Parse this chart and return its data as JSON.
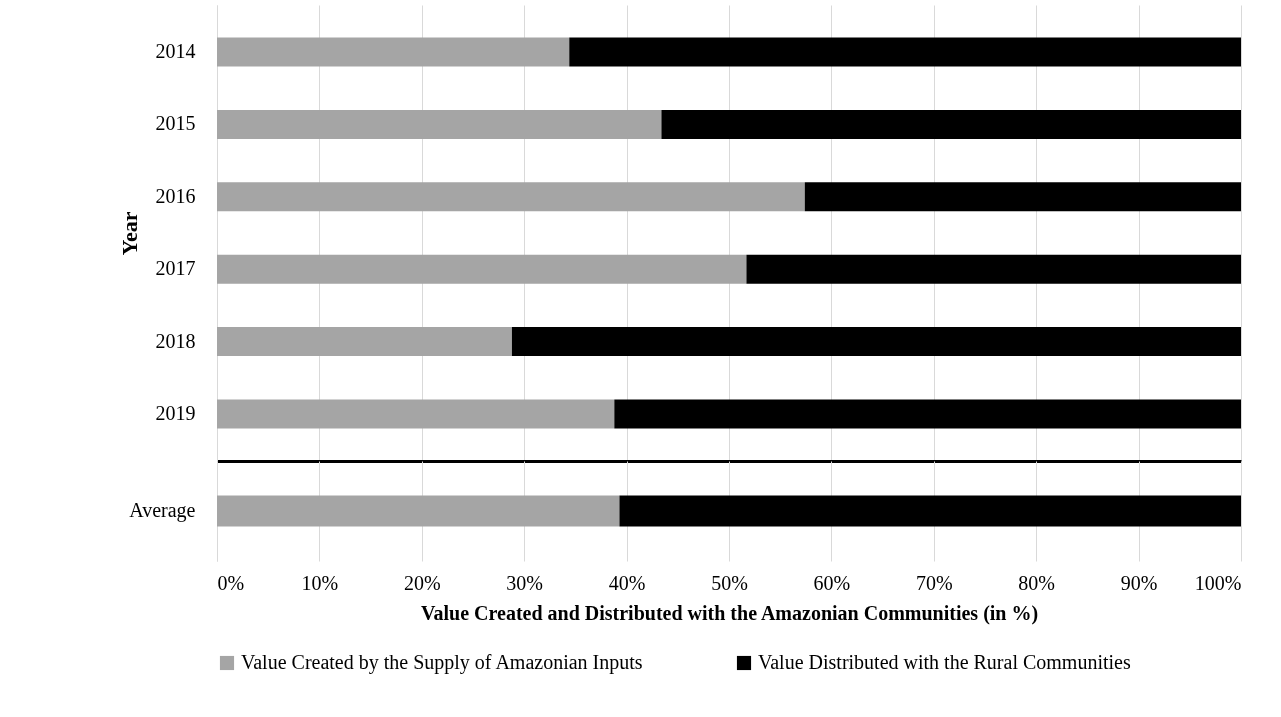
{
  "chart_data": [
    {
      "type": "bar",
      "orientation": "horizontal",
      "stacked": true,
      "ylabel": "Year",
      "categories": [
        "2014",
        "2015",
        "2016",
        "2017",
        "2018",
        "2019"
      ],
      "series": [
        {
          "color": "#a5a5a5",
          "values": [
            34.4,
            43.4,
            57.4,
            51.7,
            28.8,
            38.8
          ]
        },
        {
          "color": "#000000",
          "values": [
            65.6,
            56.6,
            42.6,
            48.3,
            71.2,
            61.2
          ]
        }
      ],
      "xlim": [
        0,
        100
      ],
      "xticks": [
        {
          "value": 0,
          "label": null
        },
        {
          "value": 10,
          "label": null
        },
        {
          "value": 20,
          "label": null
        },
        {
          "value": 30,
          "label": null
        },
        {
          "value": 40,
          "label": null
        },
        {
          "value": 50,
          "label": null
        },
        {
          "value": 60,
          "label": null
        },
        {
          "value": 70,
          "label": null
        },
        {
          "value": 80,
          "label": null
        },
        {
          "value": 90,
          "label": null
        },
        {
          "value": 100,
          "label": null
        }
      ],
      "grid": "x",
      "tick_labels": "y",
      "legend": false
    },
    {
      "type": "bar",
      "orientation": "horizontal",
      "stacked": true,
      "xlabel": "Value Created and Distributed with the Amazonian Communities (in %)",
      "categories": [
        "Average"
      ],
      "series": [
        {
          "name": "Value Created by the Supply of Amazonian Inputs",
          "color": "#a5a5a5",
          "values": [
            39.3
          ]
        },
        {
          "name": "Value Distributed with the Rural Communities",
          "color": "#000000",
          "values": [
            60.7
          ]
        }
      ],
      "xlim": [
        0,
        100
      ],
      "xticks": [
        {
          "value": 0,
          "label": "0%"
        },
        {
          "value": 10,
          "label": "10%"
        },
        {
          "value": 20,
          "label": "20%"
        },
        {
          "value": 30,
          "label": "30%"
        },
        {
          "value": 40,
          "label": "40%"
        },
        {
          "value": 50,
          "label": "50%"
        },
        {
          "value": 60,
          "label": "60%"
        },
        {
          "value": 70,
          "label": "70%"
        },
        {
          "value": 80,
          "label": "80%"
        },
        {
          "value": 90,
          "label": "90%"
        },
        {
          "value": 100,
          "label": "100%"
        }
      ],
      "grid": "x",
      "legend": "bottom"
    }
  ]
}
